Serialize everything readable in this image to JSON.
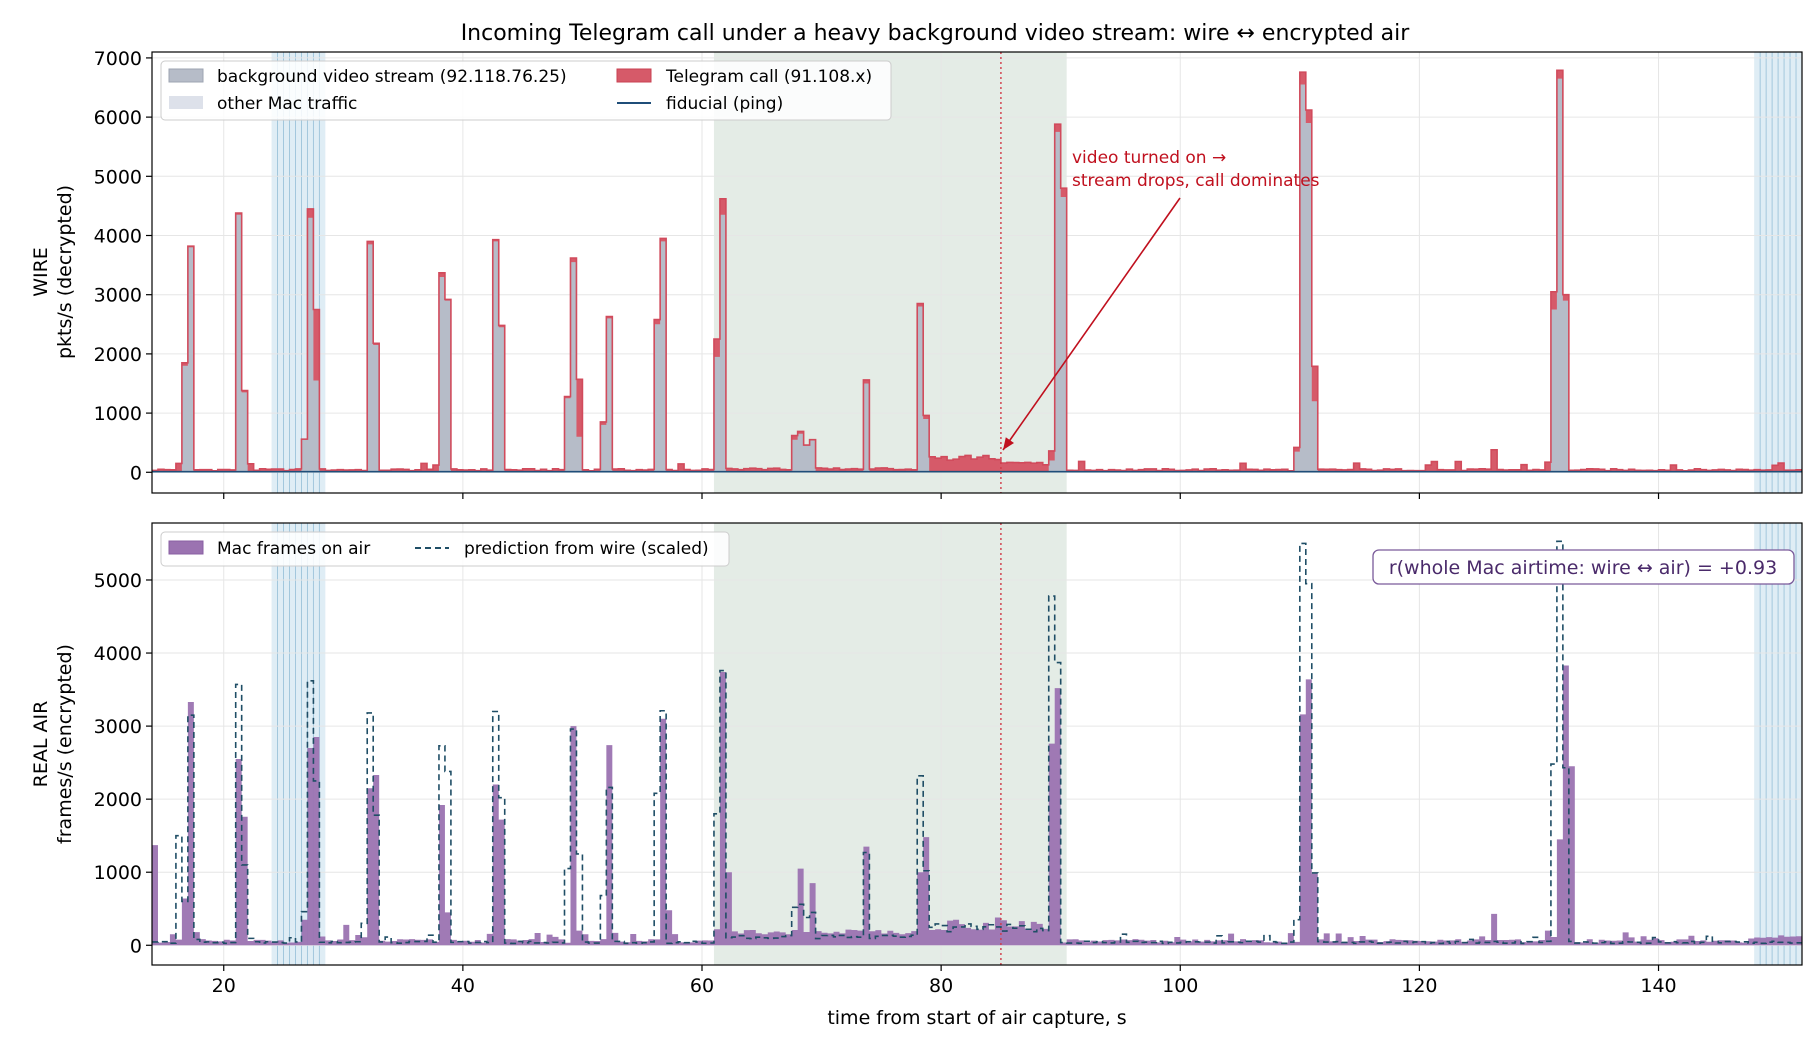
{
  "title": "Incoming Telegram call under a heavy background video stream: wire ↔ encrypted air",
  "colors": {
    "stream": "#b6bcc8",
    "other": "#dde1ea",
    "call_fill": "#d65a69",
    "call_line": "#d14b5c",
    "fiducial": "#1f4e79",
    "mac_air": "#9b73b1",
    "prediction": "#1f4e66",
    "marker": "#d13a48",
    "call_window": "#e4ece6",
    "sync_band": "#d2e6f1"
  },
  "chart_data": [
    {
      "type": "area",
      "panel": "wire",
      "ylabel_line1": "WIRE",
      "ylabel_line2": "pkts/s (decrypted)",
      "xlim": [
        14,
        152
      ],
      "ylim": [
        -350,
        7100
      ],
      "xticks": [
        20,
        40,
        60,
        80,
        100,
        120,
        140
      ],
      "yticks": [
        0,
        1000,
        2000,
        3000,
        4000,
        5000,
        6000,
        7000
      ],
      "xtick_labels_shown": false,
      "grid": true,
      "legend_position": "upper left",
      "legend": [
        "background video stream (92.118.76.25)",
        "other Mac traffic",
        "Telegram call (91.108.x)",
        "fiducial (ping)"
      ],
      "bin_seconds": 0.5,
      "call_window": [
        61,
        90.5
      ],
      "sync_bands": [
        [
          24,
          28.5
        ],
        [
          148,
          152
        ]
      ],
      "marker_x": 85,
      "annotation": {
        "line1": "video turned on →",
        "line2": "stream drops, call dominates",
        "text_xy": [
          91,
          4950
        ],
        "arrow_to": [
          85,
          350
        ]
      },
      "series": [
        {
          "name": "background video stream (92.118.76.25)",
          "peaks": [
            [
              16.75,
              1800
            ],
            [
              17.25,
              3800
            ],
            [
              21.25,
              4350
            ],
            [
              21.75,
              1350
            ],
            [
              26.75,
              550
            ],
            [
              27.25,
              4300
            ],
            [
              27.75,
              1550
            ],
            [
              32.25,
              3850
            ],
            [
              32.75,
              2150
            ],
            [
              38.25,
              3300
            ],
            [
              38.75,
              2900
            ],
            [
              42.75,
              3900
            ],
            [
              43.25,
              2450
            ],
            [
              48.75,
              1250
            ],
            [
              49.25,
              3550
            ],
            [
              49.75,
              600
            ],
            [
              51.75,
              800
            ],
            [
              52.25,
              2600
            ],
            [
              56.25,
              2500
            ],
            [
              56.75,
              3900
            ],
            [
              61.25,
              1950
            ],
            [
              61.75,
              4350
            ],
            [
              67.75,
              550
            ],
            [
              68.25,
              650
            ],
            [
              68.75,
              450
            ],
            [
              69.25,
              550
            ],
            [
              73.75,
              1500
            ],
            [
              78.25,
              2800
            ],
            [
              78.75,
              900
            ],
            [
              89.25,
              200
            ],
            [
              89.75,
              5750
            ],
            [
              90.25,
              4650
            ],
            [
              109.75,
              350
            ],
            [
              110.25,
              6550
            ],
            [
              110.75,
              5900
            ],
            [
              111.25,
              1200
            ],
            [
              131.25,
              2750
            ],
            [
              131.75,
              6650
            ],
            [
              132.25,
              2900
            ]
          ]
        },
        {
          "name": "Telegram call (91.108.x)",
          "totals": [
            [
              16.75,
              1850
            ],
            [
              17.25,
              3820
            ],
            [
              21.25,
              4380
            ],
            [
              21.75,
              1380
            ],
            [
              26.75,
              560
            ],
            [
              27.25,
              4450
            ],
            [
              27.75,
              2750
            ],
            [
              32.25,
              3900
            ],
            [
              32.75,
              2180
            ],
            [
              38.25,
              3370
            ],
            [
              38.75,
              2920
            ],
            [
              42.75,
              3930
            ],
            [
              43.25,
              2480
            ],
            [
              48.75,
              1280
            ],
            [
              49.25,
              3620
            ],
            [
              49.75,
              1570
            ],
            [
              51.75,
              850
            ],
            [
              52.25,
              2630
            ],
            [
              56.25,
              2580
            ],
            [
              56.75,
              3950
            ],
            [
              61.25,
              2250
            ],
            [
              61.75,
              4620
            ],
            [
              67.75,
              620
            ],
            [
              68.25,
              690
            ],
            [
              68.75,
              460
            ],
            [
              69.25,
              540
            ],
            [
              73.75,
              1560
            ],
            [
              78.25,
              2850
            ],
            [
              78.75,
              960
            ],
            [
              89.25,
              360
            ],
            [
              89.75,
              5880
            ],
            [
              90.25,
              4800
            ],
            [
              109.75,
              420
            ],
            [
              110.25,
              6760
            ],
            [
              110.75,
              6120
            ],
            [
              111.25,
              1790
            ],
            [
              131.25,
              3050
            ],
            [
              131.75,
              6790
            ],
            [
              132.25,
              3000
            ],
            [
              126.25,
              380
            ]
          ]
        },
        {
          "name": "fiducial (ping)",
          "level": 10
        }
      ]
    },
    {
      "type": "area",
      "panel": "air",
      "ylabel_line1": "REAL AIR",
      "ylabel_line2": "frames/s (encrypted)",
      "xlabel": "time from start of air capture, s",
      "xlim": [
        14,
        152
      ],
      "ylim": [
        -270,
        5780
      ],
      "xticks": [
        20,
        40,
        60,
        80,
        100,
        120,
        140
      ],
      "yticks": [
        0,
        1000,
        2000,
        3000,
        4000,
        5000
      ],
      "grid": true,
      "legend_position": "upper left",
      "legend": [
        "Mac frames on air",
        "prediction from wire (scaled)"
      ],
      "correlation_box": "r(whole Mac airtime: wire ↔ air) = +0.93",
      "bin_seconds": 0.5,
      "call_window": [
        61,
        90.5
      ],
      "sync_bands": [
        [
          24,
          28.5
        ],
        [
          148,
          152
        ]
      ],
      "marker_x": 85,
      "series": [
        {
          "name": "Mac frames on air",
          "peaks": [
            [
              14.25,
              1370
            ],
            [
              16.75,
              640
            ],
            [
              17.25,
              3330
            ],
            [
              17.75,
              180
            ],
            [
              21.25,
              2550
            ],
            [
              21.75,
              1760
            ],
            [
              26.75,
              350
            ],
            [
              27.25,
              2700
            ],
            [
              27.75,
              2850
            ],
            [
              28.25,
              120
            ],
            [
              30.25,
              280
            ],
            [
              32.25,
              2150
            ],
            [
              32.75,
              2330
            ],
            [
              38.25,
              1920
            ],
            [
              38.75,
              450
            ],
            [
              42.75,
              2200
            ],
            [
              43.25,
              1720
            ],
            [
              49.25,
              3000
            ],
            [
              49.75,
              200
            ],
            [
              52.25,
              2740
            ],
            [
              56.75,
              3100
            ],
            [
              57.25,
              480
            ],
            [
              61.25,
              220
            ],
            [
              61.75,
              3740
            ],
            [
              62.25,
              1000
            ],
            [
              68.25,
              1050
            ],
            [
              69.25,
              850
            ],
            [
              73.75,
              1350
            ],
            [
              78.25,
              1000
            ],
            [
              78.75,
              1480
            ],
            [
              84.75,
              380
            ],
            [
              89.25,
              2760
            ],
            [
              89.75,
              3520
            ],
            [
              110.25,
              3160
            ],
            [
              110.75,
              3640
            ],
            [
              111.25,
              980
            ],
            [
              126.25,
              430
            ],
            [
              131.75,
              1450
            ],
            [
              132.25,
              3830
            ],
            [
              132.75,
              2450
            ]
          ]
        },
        {
          "name": "prediction from wire (scaled)",
          "peaks": [
            [
              16.25,
              1500
            ],
            [
              16.75,
              600
            ],
            [
              17.25,
              3150
            ],
            [
              17.75,
              80
            ],
            [
              21.25,
              3570
            ],
            [
              21.75,
              1100
            ],
            [
              26.75,
              460
            ],
            [
              27.25,
              3620
            ],
            [
              27.75,
              2250
            ],
            [
              31.75,
              300
            ],
            [
              32.25,
              3180
            ],
            [
              32.75,
              1780
            ],
            [
              38.25,
              2730
            ],
            [
              38.75,
              2380
            ],
            [
              42.75,
              3200
            ],
            [
              43.25,
              2020
            ],
            [
              48.75,
              1050
            ],
            [
              49.25,
              2960
            ],
            [
              49.75,
              1250
            ],
            [
              51.75,
              680
            ],
            [
              52.25,
              2160
            ],
            [
              56.25,
              2080
            ],
            [
              56.75,
              3210
            ],
            [
              61.25,
              1800
            ],
            [
              61.75,
              3760
            ],
            [
              67.75,
              520
            ],
            [
              68.25,
              560
            ],
            [
              68.75,
              380
            ],
            [
              69.25,
              450
            ],
            [
              73.75,
              1270
            ],
            [
              78.25,
              2320
            ],
            [
              78.75,
              1020
            ],
            [
              89.25,
              4780
            ],
            [
              89.75,
              3870
            ],
            [
              109.75,
              350
            ],
            [
              110.25,
              5500
            ],
            [
              110.75,
              4950
            ],
            [
              111.25,
              990
            ],
            [
              131.25,
              2480
            ],
            [
              131.75,
              5530
            ],
            [
              132.25,
              2430
            ]
          ]
        }
      ]
    }
  ]
}
